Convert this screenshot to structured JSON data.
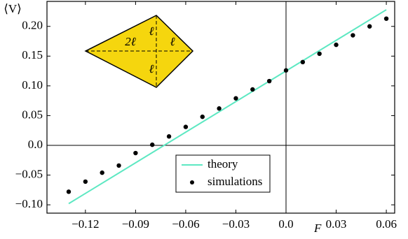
{
  "chart_data": {
    "type": "line",
    "x_label": "F",
    "y_label": "⟨V⟩",
    "xlim": [
      -0.143,
      0.065
    ],
    "ylim": [
      -0.114,
      0.242
    ],
    "xticks": [
      {
        "value": -0.12,
        "label": "−0.12"
      },
      {
        "value": -0.09,
        "label": "−0.09"
      },
      {
        "value": -0.06,
        "label": "−0.06"
      },
      {
        "value": -0.03,
        "label": "−0.03"
      },
      {
        "value": 0,
        "label": "0.0"
      },
      {
        "value": 0.03,
        "label": "0.03"
      },
      {
        "value": 0.06,
        "label": "0.06"
      }
    ],
    "yticks": [
      {
        "value": -0.1,
        "label": "−0.10"
      },
      {
        "value": -0.05,
        "label": "−0.05"
      },
      {
        "value": 0,
        "label": "0.0"
      },
      {
        "value": 0.05,
        "label": "0.05"
      },
      {
        "value": 0.1,
        "label": "0.10"
      },
      {
        "value": 0.15,
        "label": "0.15"
      },
      {
        "value": 0.2,
        "label": "0.20"
      }
    ],
    "zero_lines": true,
    "legend": "lower-center",
    "series": [
      {
        "name": "theory",
        "type": "line",
        "color": "#5de8c2",
        "x": [
          -0.13,
          0.06
        ],
        "values": [
          -0.098,
          0.228
        ]
      },
      {
        "name": "simulations",
        "type": "scatter",
        "color": "#000000",
        "x": [
          -0.13,
          -0.12,
          -0.11,
          -0.1,
          -0.09,
          -0.08,
          -0.07,
          -0.06,
          -0.05,
          -0.04,
          -0.03,
          -0.02,
          -0.01,
          0.0,
          0.01,
          0.02,
          0.03,
          0.04,
          0.05,
          0.06
        ],
        "values": [
          -0.078,
          -0.061,
          -0.046,
          -0.034,
          -0.013,
          0.001,
          0.015,
          0.031,
          0.048,
          0.062,
          0.079,
          0.094,
          0.108,
          0.126,
          0.14,
          0.154,
          0.169,
          0.185,
          0.2,
          0.213
        ]
      }
    ],
    "annotations": [
      "2ℓ",
      "ℓ",
      "ℓ",
      "ℓ"
    ]
  }
}
